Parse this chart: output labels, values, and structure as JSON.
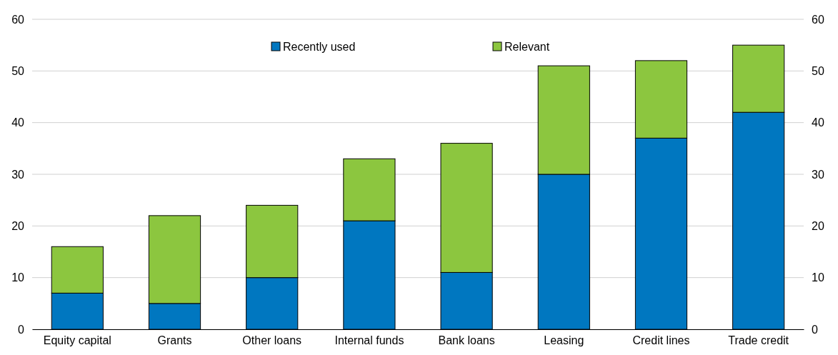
{
  "chart_data": {
    "type": "bar",
    "stacked": true,
    "categories": [
      "Equity capital",
      "Grants",
      "Other loans",
      "Internal funds",
      "Bank loans",
      "Leasing",
      "Credit lines",
      "Trade credit"
    ],
    "series": [
      {
        "name": "Recently used",
        "color": "#0077c0",
        "values": [
          7,
          5,
          10,
          21,
          11,
          30,
          37,
          42
        ]
      },
      {
        "name": "Relevant",
        "color": "#8cc63f",
        "values": [
          9,
          17,
          14,
          12,
          25,
          21,
          15,
          13
        ]
      }
    ],
    "ylim": [
      0,
      60
    ],
    "yticks": [
      0,
      10,
      20,
      30,
      40,
      50,
      60
    ],
    "y2lim": [
      0,
      60
    ],
    "y2ticks": [
      0,
      10,
      20,
      30,
      40,
      50,
      60
    ],
    "grid": "y",
    "legend": "top"
  }
}
